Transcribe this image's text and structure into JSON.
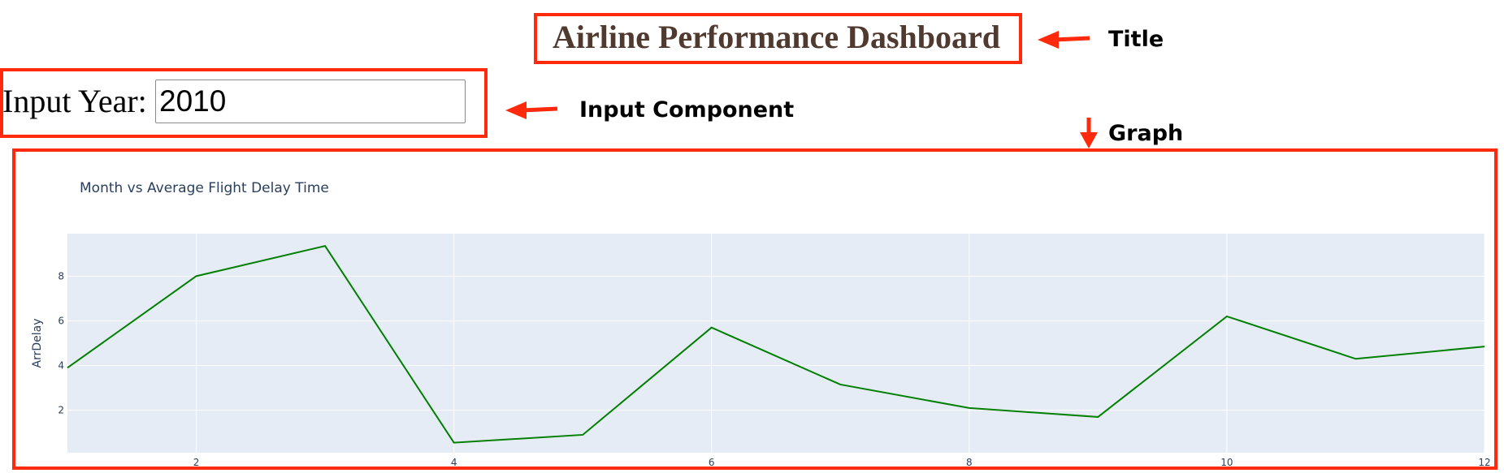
{
  "header": {
    "title": "Airline Performance Dashboard"
  },
  "input": {
    "label": "Input Year:",
    "value": "2010"
  },
  "annotations": {
    "title_label": "Title",
    "input_label": "Input Component",
    "graph_label": "Graph",
    "color": "#ff2a0c"
  },
  "chart_data": {
    "type": "line",
    "title": "Month vs Average Flight Delay Time",
    "xlabel": "",
    "ylabel": "ArrDelay",
    "x": [
      1,
      2,
      3,
      4,
      5,
      6,
      7,
      8,
      9,
      10,
      11,
      12
    ],
    "series": [
      {
        "values": [
          3.9,
          8.0,
          9.35,
          0.55,
          0.9,
          5.7,
          3.15,
          2.1,
          1.7,
          6.2,
          4.3,
          4.85
        ],
        "color": "#008000"
      }
    ],
    "xlim": [
      1,
      12
    ],
    "ylim": [
      0.1,
      9.9
    ],
    "xticks": [
      2,
      4,
      6,
      8,
      10,
      12
    ],
    "yticks": [
      2,
      4,
      6,
      8
    ],
    "plot_bg": "#e5ecf6",
    "grid": true
  }
}
